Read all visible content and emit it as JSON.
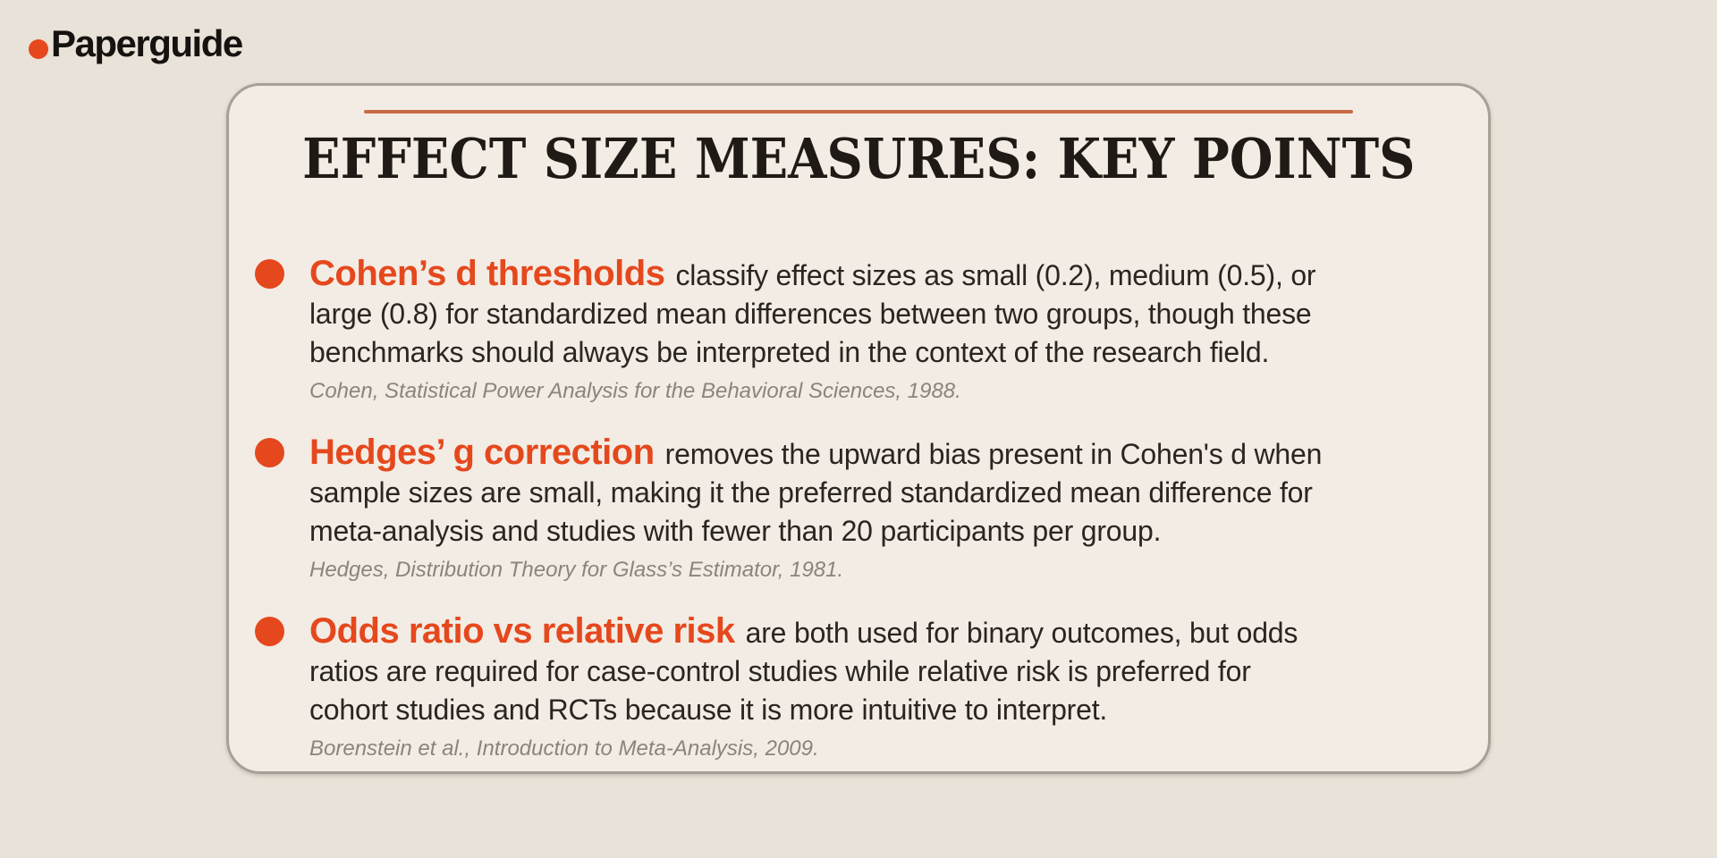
{
  "brand": {
    "name": "Paperguide"
  },
  "card": {
    "title": "EFFECT SIZE MEASURES: KEY POINTS",
    "bullets": [
      {
        "heading": "Cohen’s d thresholds",
        "body": "classify effect sizes as small (0.2), medium (0.5), or\nlarge (0.8) for standardized mean differences between two groups, though these\nbenchmarks should always be interpreted in the context of the research field.",
        "citation": "Cohen, Statistical Power Analysis for the Behavioral Sciences, 1988."
      },
      {
        "heading": "Hedges’ g correction",
        "body": "removes the upward bias present in Cohen's d when\nsample sizes are small, making it the preferred standardized mean difference for\nmeta-analysis and studies with fewer than 20 participants per group.",
        "citation": "Hedges, Distribution Theory for Glass’s Estimator, 1981."
      },
      {
        "heading": "Odds ratio vs relative risk",
        "body": "are both used for binary outcomes, but odds\nratios are required for case-control studies while relative risk is preferred for\ncohort studies and RCTs because it is more intuitive to interpret.",
        "citation": "Borenstein et al., Introduction to Meta-Analysis, 2009."
      }
    ]
  },
  "colors": {
    "page_bg": "#E9E2D8",
    "card_bg": "#F2ECE4",
    "card_border": "#A8A096",
    "accent": "#E5481D",
    "rule": "#C96B45",
    "title_text": "#1F1A15",
    "body_text": "#2B2521",
    "citation_text": "#8B847B",
    "logo_text": "#15120F"
  }
}
